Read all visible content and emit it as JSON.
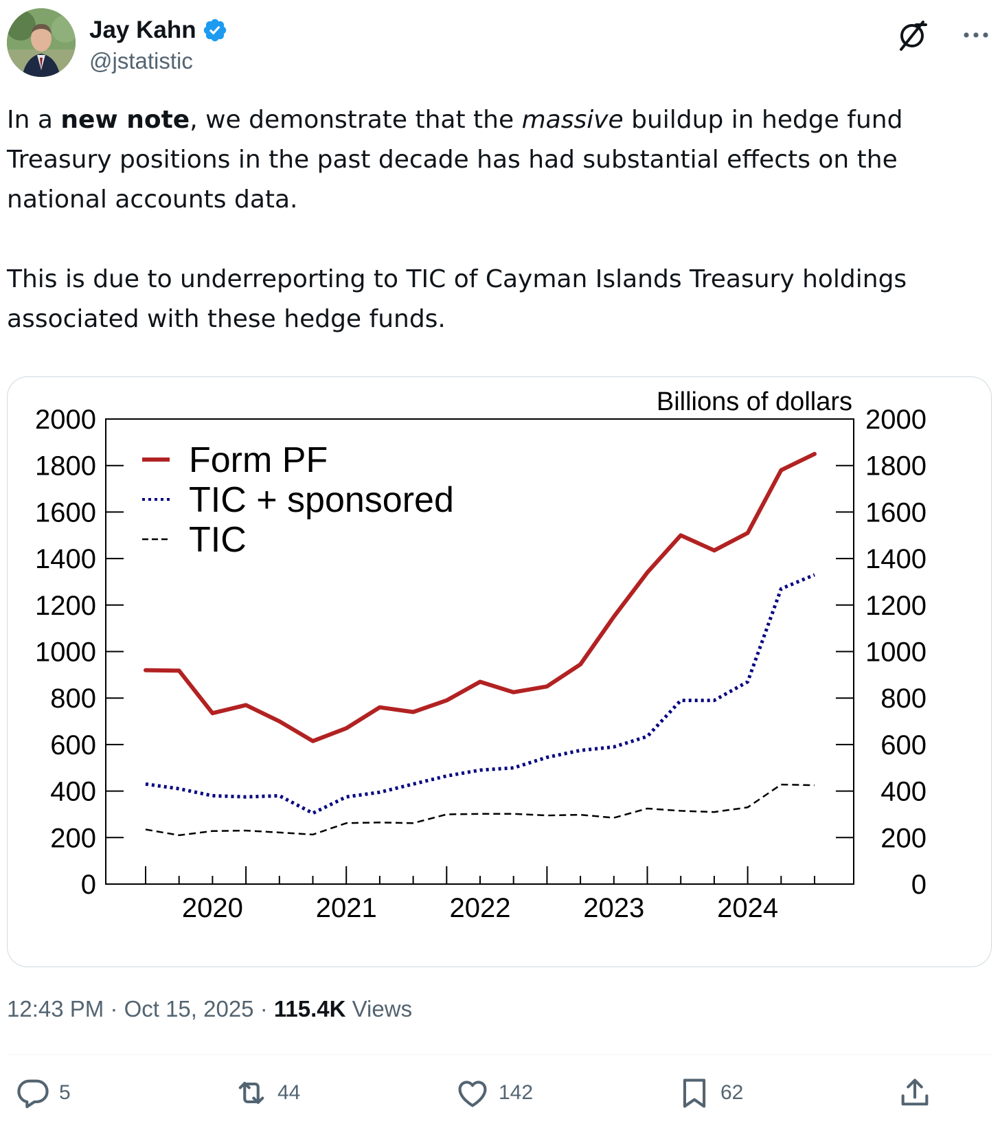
{
  "author": {
    "display_name": "Jay Kahn",
    "handle": "@jstatistic",
    "verified": true
  },
  "icons": {
    "avatar": "avatar-photo",
    "verified": "verified-badge-icon",
    "grok": "grok-icon",
    "more": "more-icon",
    "reply": "reply-icon",
    "repost": "repost-icon",
    "like": "heart-icon",
    "bookmark": "bookmark-icon",
    "share": "share-icon"
  },
  "colors": {
    "verified": "#1d9bf0",
    "secondary_text": "#536471",
    "form_pf": "#b22222",
    "tic_sponsored": "#000080",
    "tic": "#000000"
  },
  "tweet": {
    "p1_a": "In a ",
    "p1_b": "new note",
    "p1_c": ", we demonstrate that the ",
    "p1_d": "massive",
    "p1_e": " buildup in hedge fund Treasury positions in the past decade has had substantial effects on the national accounts data.",
    "p2": "This is due to underreporting to TIC of Cayman Islands Treasury holdings associated with these hedge funds."
  },
  "meta": {
    "time": "12:43 PM",
    "sep1": " · ",
    "date": "Oct 15, 2025",
    "sep2": " · ",
    "views_count": "115.4K",
    "views_label": " Views"
  },
  "actions": {
    "replies": "5",
    "reposts": "44",
    "likes": "142",
    "bookmarks": "62"
  },
  "chart_data": {
    "type": "line",
    "units_label": "Billions of dollars",
    "ylim": [
      0,
      2000
    ],
    "y_ticks": [
      0,
      200,
      400,
      600,
      800,
      1000,
      1200,
      1400,
      1600,
      1800,
      2000
    ],
    "x_tick_labels": [
      "2020",
      "2021",
      "2022",
      "2023",
      "2024"
    ],
    "x_label_quarter_index": [
      2,
      6,
      10,
      14,
      18
    ],
    "quarters_count": 21,
    "legend_position": "top-left",
    "series": [
      {
        "name": "Form PF",
        "style": "solid",
        "values": [
          920,
          918,
          735,
          770,
          700,
          615,
          670,
          760,
          740,
          790,
          870,
          825,
          850,
          945,
          1150,
          1340,
          1500,
          1435,
          1510,
          1780,
          1850
        ]
      },
      {
        "name": "TIC + sponsored",
        "style": "dotted",
        "values": [
          430,
          410,
          380,
          375,
          380,
          305,
          375,
          395,
          430,
          465,
          490,
          500,
          545,
          575,
          590,
          635,
          790,
          790,
          870,
          1270,
          1330
        ]
      },
      {
        "name": "TIC",
        "style": "dashed",
        "values": [
          235,
          210,
          228,
          230,
          222,
          213,
          262,
          265,
          262,
          300,
          302,
          302,
          295,
          298,
          285,
          325,
          315,
          310,
          330,
          428,
          425
        ]
      }
    ]
  }
}
